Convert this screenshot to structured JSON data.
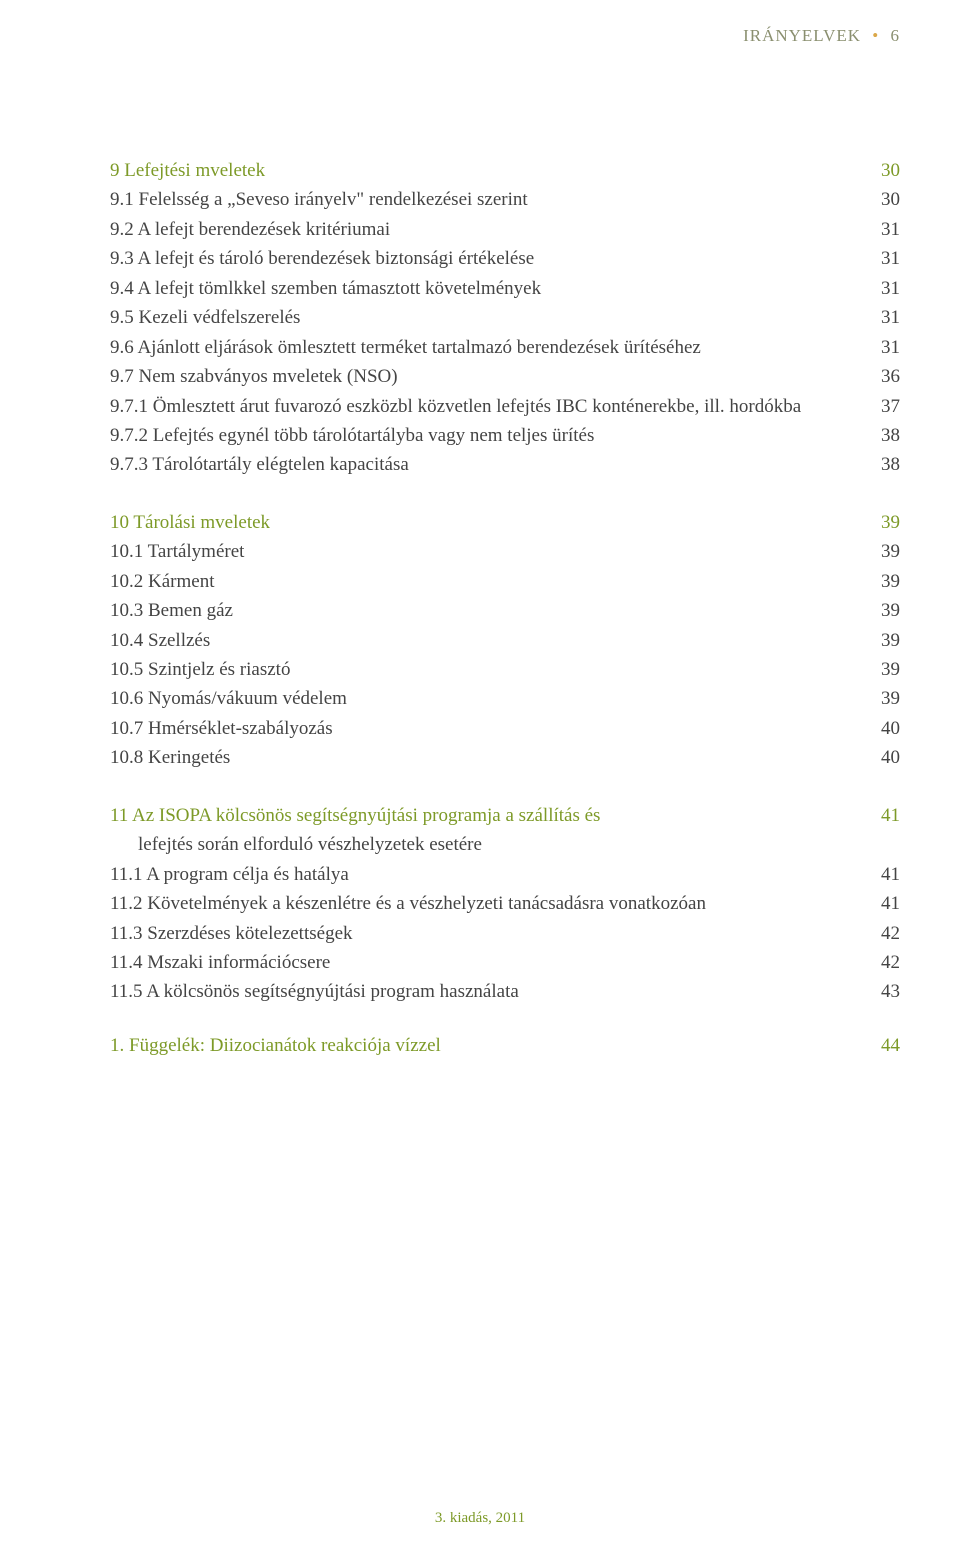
{
  "header": {
    "title": "IRÁNYELVEK",
    "bullet": "•",
    "page": "6"
  },
  "sections": [
    {
      "title": {
        "text": "9 Lefejtési mveletek",
        "page": "30"
      },
      "items": [
        {
          "text": "9.1 Felelsség a „Seveso irányelv\" rendelkezései szerint",
          "page": "30"
        },
        {
          "text": "9.2 A lefejt berendezések kritériumai",
          "page": "31"
        },
        {
          "text": "9.3 A lefejt és tároló berendezések biztonsági értékelése",
          "page": "31"
        },
        {
          "text": "9.4 A lefejt tömlkkel szemben támasztott követelmények",
          "page": "31"
        },
        {
          "text": "9.5 Kezeli védfelszerelés",
          "page": "31"
        },
        {
          "text": "9.6 Ajánlott eljárások ömlesztett terméket tartalmazó berendezések ürítéséhez",
          "page": "31"
        },
        {
          "text": "9.7 Nem szabványos mveletek (NSO)",
          "page": "36"
        },
        {
          "text": "9.7.1 Ömlesztett árut fuvarozó eszközbl közvetlen lefejtés IBC konténerekbe, ill. hordókba",
          "page": "37"
        },
        {
          "text": "9.7.2 Lefejtés egynél több tárolótartályba vagy nem teljes ürítés",
          "page": "38"
        },
        {
          "text": "9.7.3 Tárolótartály elégtelen kapacitása",
          "page": "38"
        }
      ]
    },
    {
      "title": {
        "text": "10 Tárolási mveletek",
        "page": "39"
      },
      "items": [
        {
          "text": "10.1 Tartályméret",
          "page": "39"
        },
        {
          "text": "10.2 Kárment",
          "page": "39"
        },
        {
          "text": "10.3 Bemen gáz",
          "page": "39"
        },
        {
          "text": "10.4 Szellzés",
          "page": "39"
        },
        {
          "text": "10.5 Szintjelz és riasztó",
          "page": "39"
        },
        {
          "text": "10.6 Nyomás/vákuum védelem",
          "page": "39"
        },
        {
          "text": "10.7 Hmérséklet-szabályozás",
          "page": "40"
        },
        {
          "text": "10.8 Keringetés",
          "page": "40"
        }
      ]
    },
    {
      "title": {
        "text": "11 Az ISOPA kölcsönös segítségnyújtási programja a szállítás és",
        "page": "41"
      },
      "title_cont": "lefejtés során elforduló vészhelyzetek esetére",
      "items": [
        {
          "text": "11.1 A program célja és hatálya",
          "page": "41"
        },
        {
          "text": "11.2 Követelmények a készenlétre és a vészhelyzeti tanácsadásra vonatkozóan",
          "page": "41"
        },
        {
          "text": "11.3 Szerzdéses kötelezettségek",
          "page": "42"
        },
        {
          "text": "11.4 Mszaki információcsere",
          "page": "42"
        },
        {
          "text": "11.5 A kölcsönös segítségnyújtási program használata",
          "page": "43"
        }
      ]
    }
  ],
  "appendix": {
    "text": "1. Függelék: Diizocianátok reakciója vízzel",
    "page": "44"
  },
  "footer": "3. kiadás, 2011"
}
